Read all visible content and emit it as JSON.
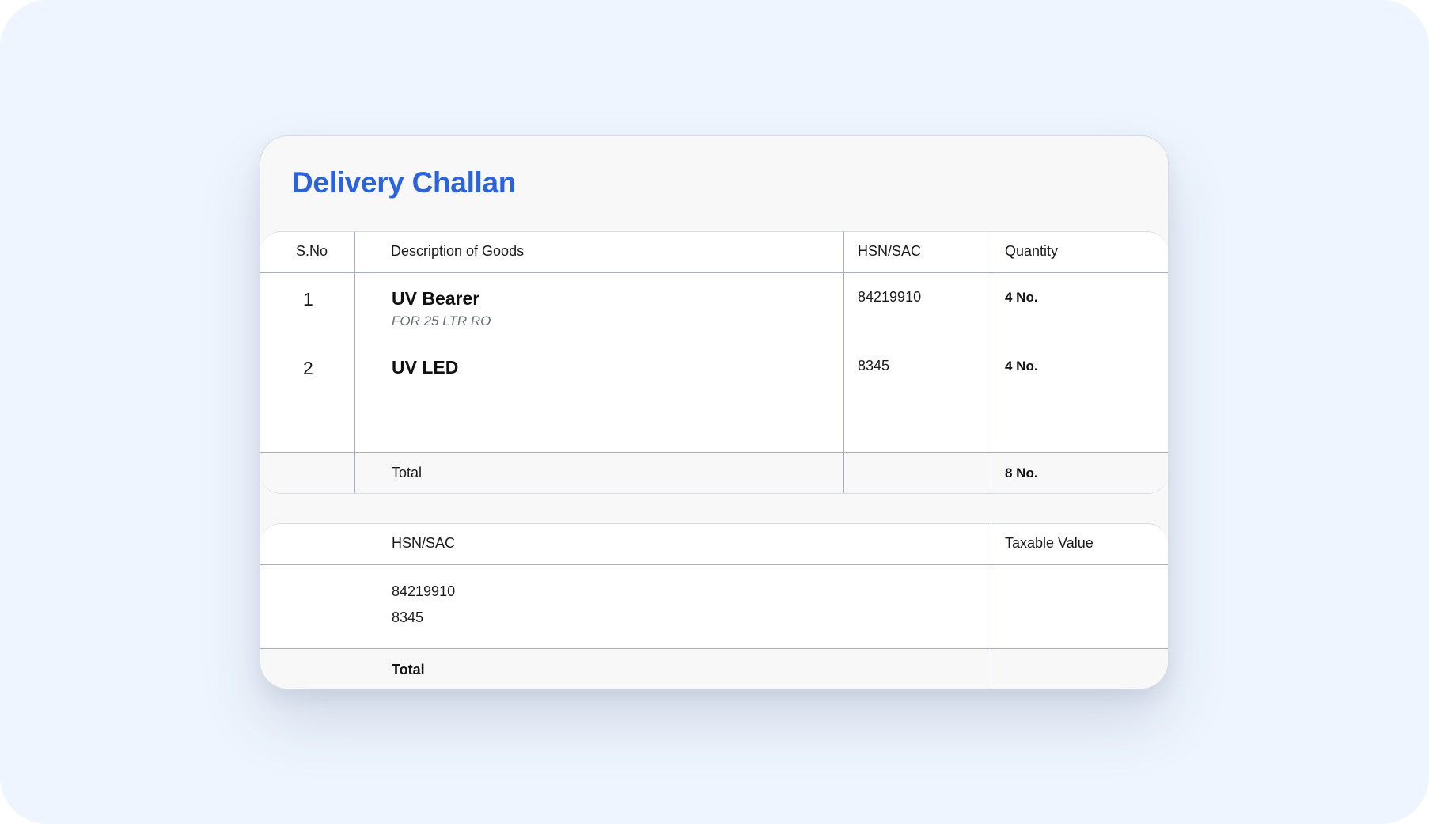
{
  "document": {
    "title": "Delivery Challan"
  },
  "items_table": {
    "headers": {
      "sno": "S.No",
      "description": "Description of Goods",
      "hsn": "HSN/SAC",
      "quantity": "Quantity"
    },
    "rows": [
      {
        "sno": "1",
        "name": "UV Bearer",
        "subtext": "FOR 25 LTR RO",
        "hsn": "84219910",
        "quantity": "4 No."
      },
      {
        "sno": "2",
        "name": "UV LED",
        "subtext": "",
        "hsn": "8345",
        "quantity": "4 No."
      }
    ],
    "total": {
      "label": "Total",
      "quantity": "8 No."
    }
  },
  "tax_table": {
    "headers": {
      "hsn": "HSN/SAC",
      "taxable_value": "Taxable Value"
    },
    "hsn_codes": [
      "84219910",
      "8345"
    ],
    "total": {
      "label": "Total"
    }
  },
  "colors": {
    "title": "#2a63dc",
    "backdrop": "#eef5fe",
    "card": "#f8f8f9",
    "grid_line": "#a9adc0"
  }
}
